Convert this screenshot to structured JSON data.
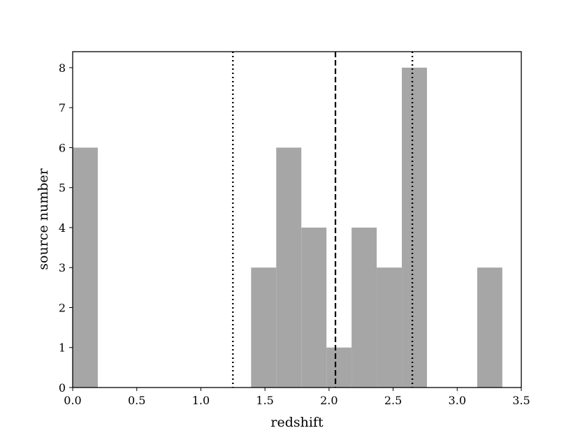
{
  "chart_data": {
    "type": "bar",
    "xlabel": "redshift",
    "ylabel": "source number",
    "xlim": [
      0.0,
      3.5
    ],
    "ylim": [
      0,
      8.4
    ],
    "bin_width": 0.196,
    "bins": [
      {
        "left": 0.0,
        "count": 6
      },
      {
        "left": 1.392,
        "count": 3
      },
      {
        "left": 1.588,
        "count": 6
      },
      {
        "left": 1.784,
        "count": 4
      },
      {
        "left": 1.98,
        "count": 1
      },
      {
        "left": 2.176,
        "count": 4
      },
      {
        "left": 2.372,
        "count": 3
      },
      {
        "left": 2.568,
        "count": 8
      },
      {
        "left": 3.156,
        "count": 3
      }
    ],
    "vlines": [
      {
        "x": 1.25,
        "style": "dotted"
      },
      {
        "x": 2.05,
        "style": "dashed"
      },
      {
        "x": 2.65,
        "style": "dotted"
      }
    ],
    "xticks": [
      "0.0",
      "0.5",
      "1.0",
      "1.5",
      "2.0",
      "2.5",
      "3.0",
      "3.5"
    ],
    "yticks": [
      "0",
      "1",
      "2",
      "3",
      "4",
      "5",
      "6",
      "7",
      "8"
    ],
    "bar_color": "#a6a6a6",
    "grid": false,
    "legend": "none"
  }
}
